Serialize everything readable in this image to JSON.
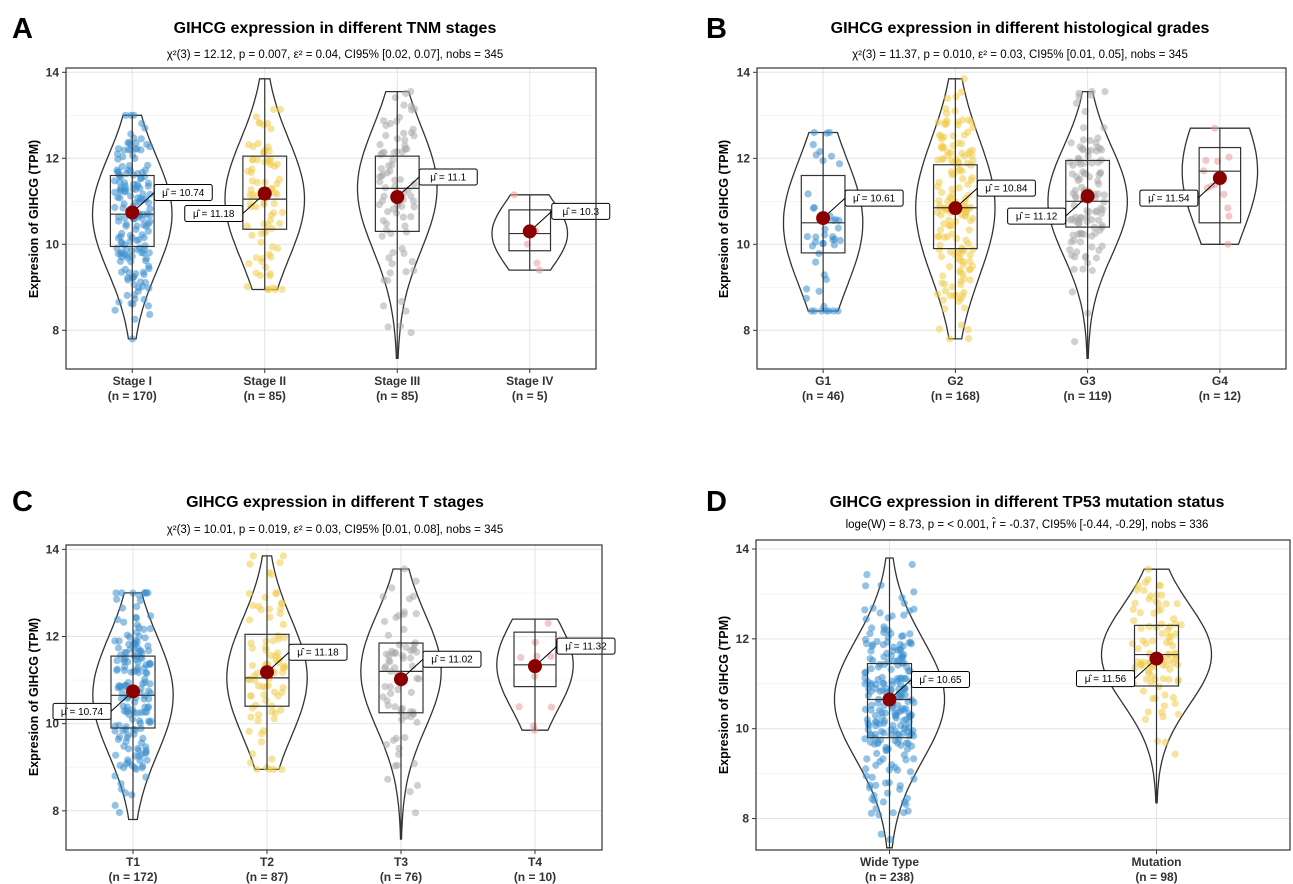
{
  "chart_data": [
    {
      "type": "violin",
      "panel_label": "A",
      "title": "GIHCG expression in different TNM stages",
      "subtitle": "χ²(3) = 12.12, p = 0.007, ε² = 0.04, CI95% [0.02, 0.07], nobs = 345",
      "ylabel": "Expresion of GIHCG (TPM)",
      "ylim": [
        7.1,
        14.1
      ],
      "yticks": [
        8,
        10,
        12,
        14
      ],
      "grid": true,
      "categories": [
        "Stage I",
        "Stage II",
        "Stage III",
        "Stage IV"
      ],
      "counts": [
        "(n = 170)",
        "(n = 85)",
        "(n = 85)",
        "(n = 5)"
      ],
      "colors": [
        "#3b8fd0",
        "#f0cc4a",
        "#a9a9a9",
        "#e79a9a"
      ],
      "ns": [
        170,
        85,
        85,
        5
      ],
      "means": [
        10.74,
        11.18,
        11.1,
        10.3
      ],
      "mean_labels": [
        "μ̂ = 10.74",
        "μ̂ = 11.18",
        "μ̂ = 11.1",
        "μ̂ = 10.3"
      ],
      "mins": [
        7.8,
        8.95,
        7.35,
        9.4
      ],
      "maxs": [
        13.0,
        13.85,
        13.55,
        11.15
      ],
      "q1": [
        9.95,
        10.35,
        10.3,
        9.85
      ],
      "medians": [
        10.7,
        11.05,
        11.3,
        10.25
      ],
      "q3": [
        11.6,
        12.05,
        12.05,
        10.8
      ]
    },
    {
      "type": "violin",
      "panel_label": "B",
      "title": "GIHCG expression in different histological grades",
      "subtitle": "χ²(3) = 11.37, p = 0.010, ε² = 0.03, CI95% [0.01, 0.05], nobs = 345",
      "ylabel": "Expresion of GIHCG (TPM)",
      "ylim": [
        7.1,
        14.1
      ],
      "yticks": [
        8,
        10,
        12,
        14
      ],
      "grid": true,
      "categories": [
        "G1",
        "G2",
        "G3",
        "G4"
      ],
      "counts": [
        "(n = 46)",
        "(n = 168)",
        "(n = 119)",
        "(n = 12)"
      ],
      "colors": [
        "#3b8fd0",
        "#f0cc4a",
        "#a9a9a9",
        "#e79a9a"
      ],
      "ns": [
        46,
        168,
        119,
        12
      ],
      "means": [
        10.61,
        10.84,
        11.12,
        11.54
      ],
      "mean_labels": [
        "μ̂ = 10.61",
        "μ̂ = 10.84",
        "μ̂ = 11.12",
        "μ̂ = 11.54"
      ],
      "mins": [
        8.45,
        7.8,
        7.35,
        10.0
      ],
      "maxs": [
        12.6,
        13.85,
        13.55,
        12.7
      ],
      "q1": [
        9.8,
        9.9,
        10.4,
        10.5
      ],
      "medians": [
        10.5,
        10.85,
        11.0,
        11.7
      ],
      "q3": [
        11.6,
        11.85,
        11.95,
        12.25
      ]
    },
    {
      "type": "violin",
      "panel_label": "C",
      "title": "GIHCG expression in different T stages",
      "subtitle": "χ²(3) = 10.01, p = 0.019, ε² = 0.03, CI95% [0.01, 0.08], nobs = 345",
      "ylabel": "Expresion of GIHCG (TPM)",
      "ylim": [
        7.1,
        14.1
      ],
      "yticks": [
        8,
        10,
        12,
        14
      ],
      "grid": true,
      "categories": [
        "T1",
        "T2",
        "T3",
        "T4"
      ],
      "counts": [
        "(n = 172)",
        "(n = 87)",
        "(n = 76)",
        "(n = 10)"
      ],
      "colors": [
        "#3b8fd0",
        "#f0cc4a",
        "#a9a9a9",
        "#e79a9a"
      ],
      "ns": [
        172,
        87,
        76,
        10
      ],
      "means": [
        10.74,
        11.18,
        11.02,
        11.32
      ],
      "mean_labels": [
        "μ̂ = 10.74",
        "μ̂ = 11.18",
        "μ̂ = 11.02",
        "μ̂ = 11.32"
      ],
      "mins": [
        7.8,
        8.95,
        7.35,
        9.85
      ],
      "maxs": [
        13.0,
        13.85,
        13.55,
        12.4
      ],
      "q1": [
        9.9,
        10.4,
        10.25,
        10.85
      ],
      "medians": [
        10.65,
        11.05,
        11.2,
        11.35
      ],
      "q3": [
        11.55,
        12.05,
        11.85,
        12.1
      ]
    },
    {
      "type": "violin",
      "panel_label": "D",
      "title": "GIHCG expression in different TP53 mutation status",
      "subtitle": "loge(W) = 8.73, p = < 0.001, r̂ = -0.37, CI95% [-0.44, -0.29], nobs = 336",
      "ylabel": "Expresion of GIHCG (TPM)",
      "ylim": [
        7.3,
        14.2
      ],
      "yticks": [
        8,
        10,
        12,
        14
      ],
      "grid": true,
      "categories": [
        "Wide Type",
        "Mutation"
      ],
      "counts": [
        "(n = 238)",
        "(n = 98)"
      ],
      "colors": [
        "#3b8fd0",
        "#f0cc4a"
      ],
      "ns": [
        238,
        98
      ],
      "means": [
        10.65,
        11.56
      ],
      "mean_labels": [
        "μ̂ = 10.65",
        "μ̂ = 11.56"
      ],
      "mins": [
        7.35,
        8.35
      ],
      "maxs": [
        13.8,
        13.55
      ],
      "q1": [
        9.8,
        10.95
      ],
      "medians": [
        10.65,
        11.65
      ],
      "q3": [
        11.45,
        12.3
      ]
    }
  ]
}
